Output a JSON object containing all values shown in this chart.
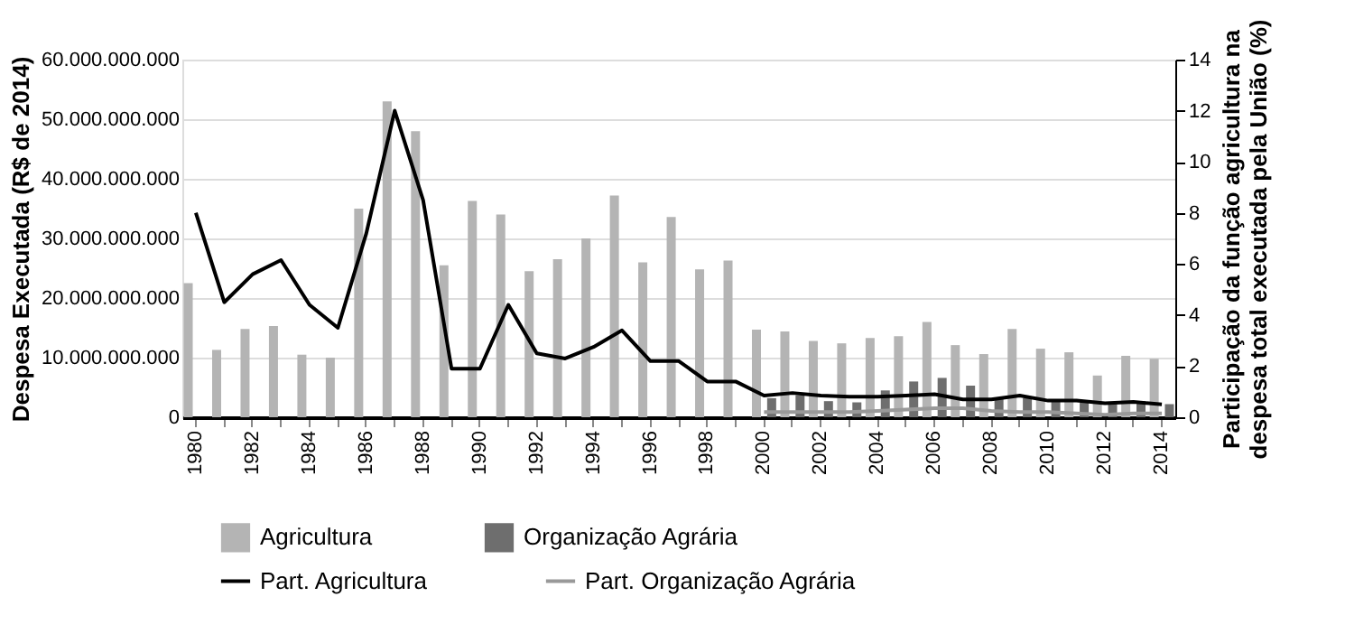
{
  "chart_data": {
    "type": "bar",
    "ylabel": "Despesa Executada (R$ de 2014)",
    "y2label": "Participação da função agricultura na despesa total executada pela União (%)",
    "categories": [
      "1980",
      null,
      "1982",
      null,
      "1984",
      null,
      "1986",
      null,
      "1988",
      null,
      "1990",
      null,
      "1992",
      null,
      "1994",
      null,
      "1996",
      null,
      "1998",
      null,
      "2000",
      null,
      "2002",
      null,
      "2004",
      null,
      "2006",
      null,
      "2008",
      null,
      "2010",
      null,
      "2012",
      null,
      "2014"
    ],
    "series": [
      {
        "name": "Agricultura",
        "color": "#b4b4b4",
        "values": [
          22500000000,
          11300000000,
          14800000000,
          15300000000,
          10500000000,
          10000000000,
          35000000000,
          53000000000,
          48000000000,
          25500000000,
          36300000000,
          34000000000,
          24500000000,
          26500000000,
          30000000000,
          37200000000,
          26000000000,
          33600000000,
          24800000000,
          26300000000,
          14700000000,
          14400000000,
          12800000000,
          12400000000,
          13300000000,
          13600000000,
          16000000000,
          12100000000,
          10600000000,
          14800000000,
          11500000000,
          10900000000,
          7000000000,
          10300000000,
          9800000000
        ]
      },
      {
        "name": "Organização Agrária",
        "color": "#6e6e6e",
        "values": [
          null,
          null,
          null,
          null,
          null,
          null,
          null,
          null,
          null,
          null,
          null,
          null,
          null,
          null,
          null,
          null,
          null,
          null,
          null,
          null,
          3200000000,
          3700000000,
          2700000000,
          2500000000,
          4500000000,
          6000000000,
          6600000000,
          5300000000,
          3200000000,
          3200000000,
          2700000000,
          2500000000,
          2200000000,
          2700000000,
          2200000000
        ]
      },
      {
        "name": "Part. Agricultura",
        "type": "line",
        "axis": "y2",
        "color": "#000000",
        "values": [
          8.0,
          4.5,
          5.6,
          6.15,
          4.4,
          3.5,
          7.2,
          12.0,
          8.5,
          1.9,
          1.9,
          4.4,
          2.5,
          2.3,
          2.75,
          3.4,
          2.2,
          2.2,
          1.4,
          1.4,
          0.85,
          0.95,
          0.85,
          0.8,
          0.8,
          0.85,
          0.9,
          0.7,
          0.7,
          0.85,
          0.65,
          0.65,
          0.55,
          0.6,
          0.5
        ]
      },
      {
        "name": "Part. Organização Agrária",
        "type": "line",
        "axis": "y2",
        "color": "#999999",
        "values": [
          null,
          null,
          null,
          null,
          null,
          null,
          null,
          null,
          null,
          null,
          null,
          null,
          null,
          null,
          null,
          null,
          null,
          null,
          null,
          null,
          0.2,
          0.2,
          0.2,
          0.2,
          0.25,
          0.3,
          0.35,
          0.35,
          0.25,
          0.2,
          0.2,
          0.15,
          0.1,
          0.15,
          0.15
        ]
      }
    ],
    "ylim": [
      0,
      60000000000
    ],
    "yticks": [
      {
        "value": 0,
        "label": "0"
      },
      {
        "value": 10000000000,
        "label": "10.000.000.000"
      },
      {
        "value": 20000000000,
        "label": "20.000.000.000"
      },
      {
        "value": 30000000000,
        "label": "30.000.000.000"
      },
      {
        "value": 40000000000,
        "label": "40.000.000.000"
      },
      {
        "value": 50000000000,
        "label": "50.000.000.000"
      },
      {
        "value": 60000000000,
        "label": "60.000.000.000"
      }
    ],
    "y2lim": [
      0,
      14
    ],
    "y2ticks": [
      0,
      2,
      4,
      6,
      8,
      10,
      12,
      14
    ],
    "grid": "y",
    "legend": "bottom"
  }
}
